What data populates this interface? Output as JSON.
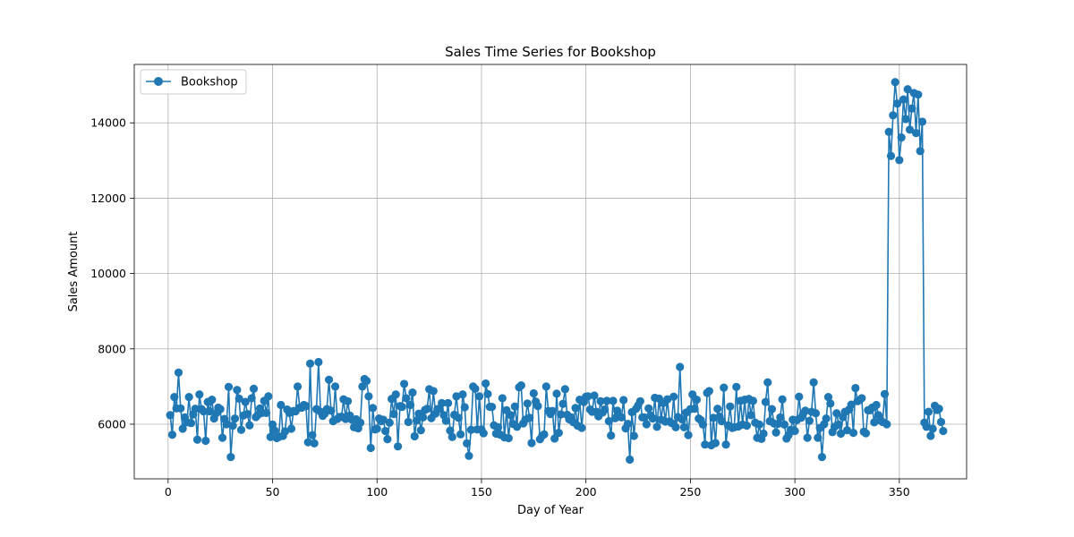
{
  "chart_data": {
    "type": "line",
    "title": "Sales Time Series for Bookshop",
    "xlabel": "Day of Year",
    "ylabel": "Sales Amount",
    "xlim": [
      -16.2,
      382.2
    ],
    "ylim": [
      4550,
      15550
    ],
    "xticks": [
      0,
      50,
      100,
      150,
      200,
      250,
      300,
      350
    ],
    "yticks": [
      6000,
      8000,
      10000,
      12000,
      14000
    ],
    "xtick_labels": [
      "0",
      "50",
      "100",
      "150",
      "200",
      "250",
      "300",
      "350"
    ],
    "ytick_labels": [
      "6000",
      "8000",
      "10000",
      "12000",
      "14000"
    ],
    "grid": true,
    "legend": "top-left",
    "series": [
      {
        "name": "Bookshop",
        "color": "#1f77b4",
        "marker": "circle",
        "x_start": 1,
        "values": [
          6240,
          5720,
          6720,
          6420,
          7370,
          6420,
          5880,
          6180,
          6050,
          6720,
          6030,
          6260,
          6410,
          5590,
          6790,
          6400,
          6340,
          5560,
          6590,
          6340,
          6650,
          6150,
          6290,
          6440,
          6400,
          5640,
          6140,
          6000,
          6990,
          5130,
          5960,
          6150,
          6910,
          6680,
          5850,
          6230,
          6590,
          6270,
          5970,
          6690,
          6940,
          6190,
          6250,
          6420,
          6300,
          6620,
          6300,
          6740,
          5660,
          5990,
          5830,
          5630,
          5660,
          6510,
          5690,
          5810,
          6390,
          6300,
          5880,
          6350,
          6340,
          7000,
          6440,
          6440,
          6510,
          6480,
          5520,
          7610,
          5710,
          5490,
          6400,
          7650,
          6330,
          6220,
          6280,
          6400,
          7180,
          6360,
          6080,
          7000,
          6140,
          6190,
          6200,
          6660,
          6140,
          6610,
          6230,
          6120,
          5920,
          6130,
          5890,
          6040,
          7000,
          7200,
          7150,
          6740,
          5370,
          6430,
          5860,
          5880,
          6150,
          6080,
          6120,
          5820,
          5600,
          6040,
          6670,
          6270,
          6790,
          5410,
          6480,
          6460,
          7070,
          6690,
          6060,
          6510,
          6840,
          5680,
          6100,
          6280,
          5840,
          6180,
          6380,
          6410,
          6930,
          6160,
          6880,
          6280,
          6400,
          6410,
          6560,
          6240,
          6090,
          6560,
          5830,
          5660,
          6250,
          6740,
          6170,
          5730,
          6790,
          6450,
          5490,
          5160,
          5850,
          7000,
          6940,
          5860,
          6740,
          5860,
          5760,
          7080,
          6800,
          6460,
          6460,
          5970,
          5750,
          5920,
          5720,
          6690,
          5650,
          6370,
          5630,
          6240,
          6010,
          6470,
          5930,
          6980,
          7030,
          6020,
          6120,
          6550,
          6170,
          5500,
          6820,
          6600,
          6480,
          5600,
          5690,
          5730,
          7000,
          6350,
          6270,
          6350,
          5620,
          6810,
          5770,
          6260,
          6540,
          6930,
          6250,
          6130,
          6180,
          6050,
          6430,
          5960,
          6650,
          5900,
          6590,
          6730,
          6740,
          6390,
          6330,
          6760,
          6330,
          6210,
          6610,
          6310,
          6390,
          6620,
          6080,
          5700,
          6620,
          6160,
          6360,
          6210,
          6180,
          6640,
          5890,
          6010,
          5060,
          6320,
          5690,
          6410,
          6500,
          6610,
          6180,
          6180,
          6000,
          6420,
          6230,
          6150,
          6700,
          5930,
          6680,
          6120,
          6560,
          6070,
          6660,
          6070,
          6030,
          6730,
          5920,
          6190,
          7520,
          6130,
          5920,
          6310,
          5710,
          6400,
          6790,
          6410,
          6650,
          6150,
          6110,
          5990,
          5460,
          6830,
          6880,
          5440,
          6170,
          5500,
          6410,
          6200,
          6080,
          6970,
          5460,
          5970,
          6470,
          5900,
          5920,
          6990,
          5940,
          6620,
          5990,
          6650,
          5960,
          6670,
          6240,
          6620,
          6040,
          5640,
          5990,
          5610,
          5750,
          6590,
          7110,
          6080,
          6400,
          6020,
          5780,
          6010,
          6180,
          6660,
          5990,
          5620,
          5710,
          5850,
          6120,
          5820,
          6110,
          6730,
          6170,
          6280,
          6360,
          5640,
          6090,
          6330,
          7110,
          6290,
          5640,
          5900,
          5130,
          6000,
          6150,
          6720,
          6550,
          5790,
          5930,
          6290,
          5990,
          5750,
          6190,
          6330,
          5840,
          6390,
          6520,
          5770,
          6960,
          6610,
          6640,
          6690,
          5800,
          5760,
          6370,
          6370,
          6440,
          6050,
          6510,
          6240,
          6100,
          6060,
          6800,
          6000,
          13760,
          13120,
          14200,
          15080,
          14510,
          13010,
          13610,
          14620,
          14100,
          14890,
          13820,
          14380,
          14790,
          13730,
          14750,
          13250,
          14030,
          6040,
          5930,
          6330,
          5690,
          5880,
          6490,
          6380,
          6410,
          6060,
          5820
        ]
      }
    ]
  }
}
